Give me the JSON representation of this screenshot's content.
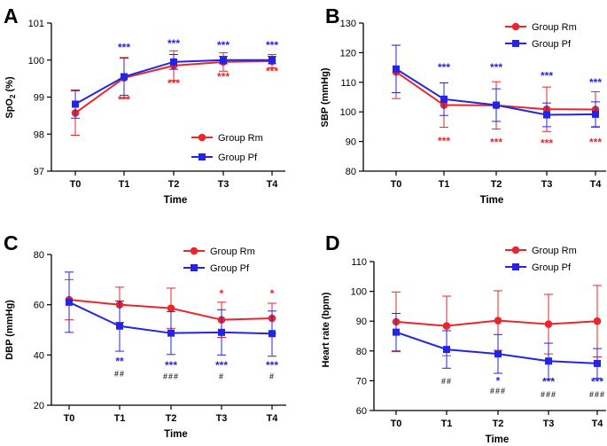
{
  "legend": {
    "rm": "Group Rm",
    "pf": "Group Pf"
  },
  "colors": {
    "rm": "#e8262b",
    "pf": "#2424e6",
    "axis": "#000000",
    "text": "#000000"
  },
  "chart_data": [
    {
      "panel": "A",
      "type": "line",
      "title": "",
      "xlabel": "Time",
      "ylabel": "SpO2 (%)",
      "ylabel_main": "SpO",
      "ylabel_sub": "2",
      "ylabel_unit": " (%)",
      "categories": [
        "T0",
        "T1",
        "T2",
        "T3",
        "T4"
      ],
      "ylim": [
        97,
        101
      ],
      "yticks": [
        97,
        98,
        99,
        100,
        101
      ],
      "legend_position": "bottom-right",
      "series": [
        {
          "name": "Group Rm",
          "key": "rm",
          "values": [
            98.57,
            99.52,
            99.85,
            99.95,
            99.97
          ],
          "err": [
            0.6,
            0.55,
            0.4,
            0.25,
            0.18
          ]
        },
        {
          "name": "Group Pf",
          "key": "pf",
          "values": [
            98.81,
            99.55,
            99.95,
            100.0,
            100.0
          ],
          "err": [
            0.38,
            0.5,
            0.2,
            0.1,
            0.1
          ]
        }
      ],
      "annotations": [
        {
          "x": "T1",
          "value": 100.25,
          "text": "***",
          "key": "pf"
        },
        {
          "x": "T2",
          "value": 100.35,
          "text": "***",
          "key": "pf"
        },
        {
          "x": "T3",
          "value": 100.3,
          "text": "***",
          "key": "pf"
        },
        {
          "x": "T4",
          "value": 100.3,
          "text": "***",
          "key": "pf"
        },
        {
          "x": "T1",
          "value": 98.83,
          "text": "***",
          "key": "rm"
        },
        {
          "x": "T2",
          "value": 99.28,
          "text": "***",
          "key": "rm"
        },
        {
          "x": "T3",
          "value": 99.45,
          "text": "***",
          "key": "rm"
        },
        {
          "x": "T4",
          "value": 99.6,
          "text": "***",
          "key": "rm"
        }
      ]
    },
    {
      "panel": "B",
      "type": "line",
      "title": "",
      "xlabel": "Time",
      "ylabel": "SBP (mmHg)",
      "categories": [
        "T0",
        "T1",
        "T2",
        "T3",
        "T4"
      ],
      "ylim": [
        80,
        130
      ],
      "yticks": [
        80,
        90,
        100,
        110,
        120,
        130
      ],
      "legend_position": "top-right",
      "series": [
        {
          "name": "Group Rm",
          "key": "rm",
          "values": [
            113.5,
            102.3,
            102.2,
            100.9,
            100.8
          ],
          "err": [
            9.0,
            7.5,
            8.0,
            7.5,
            6.0
          ]
        },
        {
          "name": "Group Pf",
          "key": "pf",
          "values": [
            114.5,
            104.3,
            102.3,
            99.0,
            99.2
          ],
          "err": [
            8.0,
            5.5,
            5.5,
            4.0,
            4.2
          ]
        }
      ],
      "annotations": [
        {
          "x": "T1",
          "value": 113.8,
          "text": "***",
          "key": "pf"
        },
        {
          "x": "T2",
          "value": 113.8,
          "text": "***",
          "key": "pf"
        },
        {
          "x": "T3",
          "value": 111.0,
          "text": "***",
          "key": "pf"
        },
        {
          "x": "T4",
          "value": 108.8,
          "text": "***",
          "key": "pf"
        },
        {
          "x": "T1",
          "value": 89.0,
          "text": "***",
          "key": "rm"
        },
        {
          "x": "T2",
          "value": 88.5,
          "text": "***",
          "key": "rm"
        },
        {
          "x": "T3",
          "value": 88.2,
          "text": "***",
          "key": "rm"
        },
        {
          "x": "T4",
          "value": 88.5,
          "text": "***",
          "key": "rm"
        }
      ]
    },
    {
      "panel": "C",
      "type": "line",
      "title": "",
      "xlabel": "Time",
      "ylabel": "DBP (mmHg)",
      "categories": [
        "T0",
        "T1",
        "T2",
        "T3",
        "T4"
      ],
      "ylim": [
        20,
        80
      ],
      "yticks": [
        20,
        40,
        60,
        80
      ],
      "legend_position": "top-right",
      "series": [
        {
          "name": "Group Rm",
          "key": "rm",
          "values": [
            62.0,
            60.0,
            58.6,
            54.0,
            54.6
          ],
          "err": [
            8.0,
            7.0,
            8.0,
            7.0,
            6.0
          ]
        },
        {
          "name": "Group Pf",
          "key": "pf",
          "values": [
            61.0,
            51.5,
            48.7,
            49.0,
            48.5
          ],
          "err": [
            12.0,
            10.0,
            8.5,
            9.0,
            9.0
          ]
        }
      ],
      "annotations": [
        {
          "x": "T3",
          "value": 63.0,
          "text": "*",
          "key": "rm"
        },
        {
          "x": "T4",
          "value": 63.0,
          "text": "*",
          "key": "rm"
        },
        {
          "x": "T1",
          "value": 36.0,
          "text": "**",
          "key": "pf"
        },
        {
          "x": "T2",
          "value": 34.5,
          "text": "***",
          "key": "pf"
        },
        {
          "x": "T3",
          "value": 34.5,
          "text": "***",
          "key": "pf"
        },
        {
          "x": "T4",
          "value": 34.5,
          "text": "***",
          "key": "pf"
        },
        {
          "x": "T1",
          "value": 31.5,
          "text": "##",
          "key": "hash"
        },
        {
          "x": "T2",
          "value": 30.5,
          "text": "###",
          "key": "hash"
        },
        {
          "x": "T3",
          "value": 30.5,
          "text": "#",
          "key": "hash"
        },
        {
          "x": "T4",
          "value": 30.5,
          "text": "#",
          "key": "hash"
        }
      ]
    },
    {
      "panel": "D",
      "type": "line",
      "title": "",
      "xlabel": "Time",
      "ylabel": "Heart rate (bpm)",
      "categories": [
        "T0",
        "T1",
        "T2",
        "T3",
        "T4"
      ],
      "ylim": [
        60,
        110
      ],
      "yticks": [
        60,
        70,
        80,
        90,
        100,
        110
      ],
      "legend_position": "top-right",
      "series": [
        {
          "name": "Group Rm",
          "key": "rm",
          "values": [
            89.8,
            88.4,
            90.2,
            89.0,
            90.0
          ],
          "err": [
            10.0,
            10.0,
            10.0,
            10.0,
            12.0
          ]
        },
        {
          "name": "Group Pf",
          "key": "pf",
          "values": [
            86.3,
            80.5,
            79.0,
            76.6,
            75.8
          ],
          "err": [
            6.3,
            6.3,
            6.5,
            6.0,
            5.0
          ]
        }
      ],
      "annotations": [
        {
          "x": "T1",
          "value": 69.0,
          "text": "##",
          "key": "hash"
        },
        {
          "x": "T2",
          "value": 68.8,
          "text": "*",
          "key": "pf"
        },
        {
          "x": "T2",
          "value": 65.6,
          "text": "###",
          "key": "hash"
        },
        {
          "x": "T3",
          "value": 68.5,
          "text": "***",
          "key": "pf"
        },
        {
          "x": "T3",
          "value": 64.5,
          "text": "###",
          "key": "hash"
        },
        {
          "x": "T4",
          "value": 68.5,
          "text": "***",
          "key": "pf"
        },
        {
          "x": "T4",
          "value": 64.5,
          "text": "###",
          "key": "hash"
        }
      ]
    }
  ]
}
